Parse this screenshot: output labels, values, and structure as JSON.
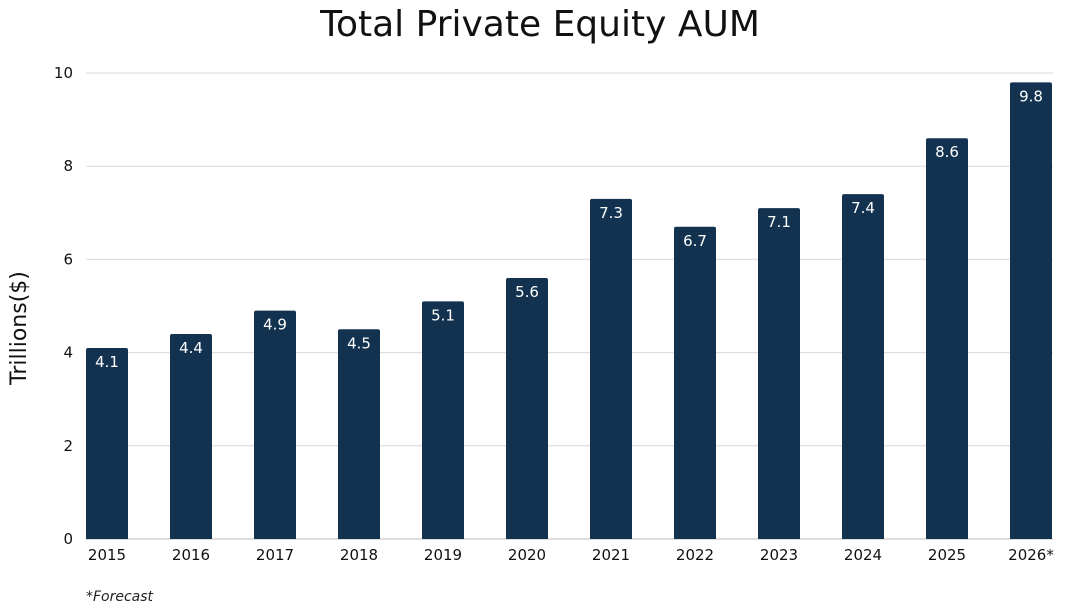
{
  "chart_data": {
    "type": "bar",
    "title": "Total Private Equity AUM",
    "ylabel": "Trillions($)",
    "xlabel": "",
    "categories": [
      "2015",
      "2016",
      "2017",
      "2018",
      "2019",
      "2020",
      "2021",
      "2022",
      "2023",
      "2024",
      "2025",
      "2026*"
    ],
    "values": [
      4.1,
      4.4,
      4.9,
      4.5,
      5.1,
      5.6,
      7.3,
      6.7,
      7.1,
      7.4,
      8.6,
      9.8
    ],
    "value_labels": [
      "4.1",
      "4.4",
      "4.9",
      "4.5",
      "5.1",
      "5.6",
      "7.3",
      "6.7",
      "7.1",
      "7.4",
      "8.6",
      "9.8"
    ],
    "ylim": [
      0,
      10
    ],
    "yticks": [
      0,
      2,
      4,
      6,
      8,
      10
    ],
    "ytick_labels": [
      "0",
      "2",
      "4",
      "6",
      "8",
      "10"
    ],
    "grid": true,
    "bar_color": "#12324f",
    "footnote": "*Forecast"
  }
}
